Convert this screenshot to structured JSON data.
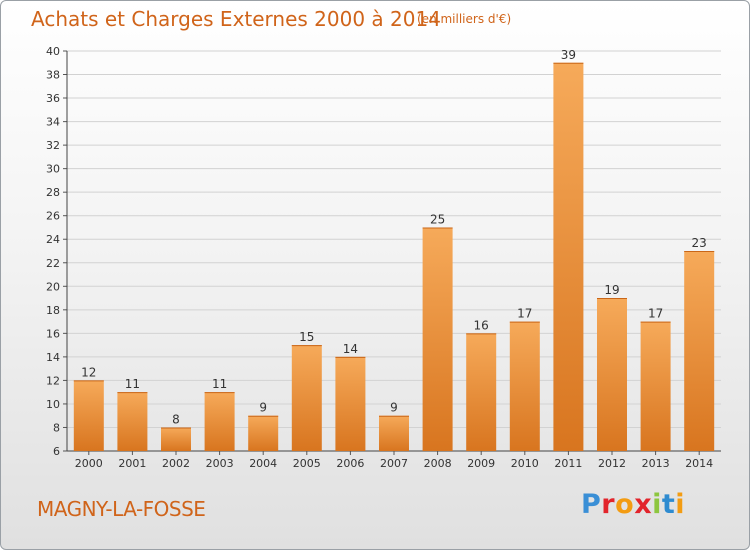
{
  "header": {
    "title": "Achats et Charges Externes 2000 à 2014",
    "unit": "(en milliers d'€)"
  },
  "footer": {
    "town": "MAGNY-LA-FOSSE",
    "logo": "Proxiti",
    "logo_colors": [
      "#3a8fd6",
      "#e2242b",
      "#f39c12",
      "#e2242b",
      "#8dc63f",
      "#2e8bd0",
      "#f39c12"
    ]
  },
  "colors": {
    "bar_light": "#f6aa5a",
    "bar_dark": "#d8751f",
    "accent": "#d0641a"
  },
  "chart_data": {
    "type": "bar",
    "categories": [
      "2000",
      "2001",
      "2002",
      "2003",
      "2004",
      "2005",
      "2006",
      "2007",
      "2008",
      "2009",
      "2010",
      "2011",
      "2012",
      "2013",
      "2014"
    ],
    "values": [
      12,
      11,
      8,
      11,
      9,
      15,
      14,
      9,
      25,
      16,
      17,
      39,
      19,
      17,
      23
    ],
    "title": "Achats et Charges Externes 2000 à 2014",
    "ylim": [
      6,
      40
    ],
    "yticks": [
      6,
      8,
      10,
      12,
      14,
      16,
      18,
      20,
      22,
      24,
      26,
      28,
      30,
      32,
      34,
      36,
      38,
      40
    ],
    "grid": true
  }
}
